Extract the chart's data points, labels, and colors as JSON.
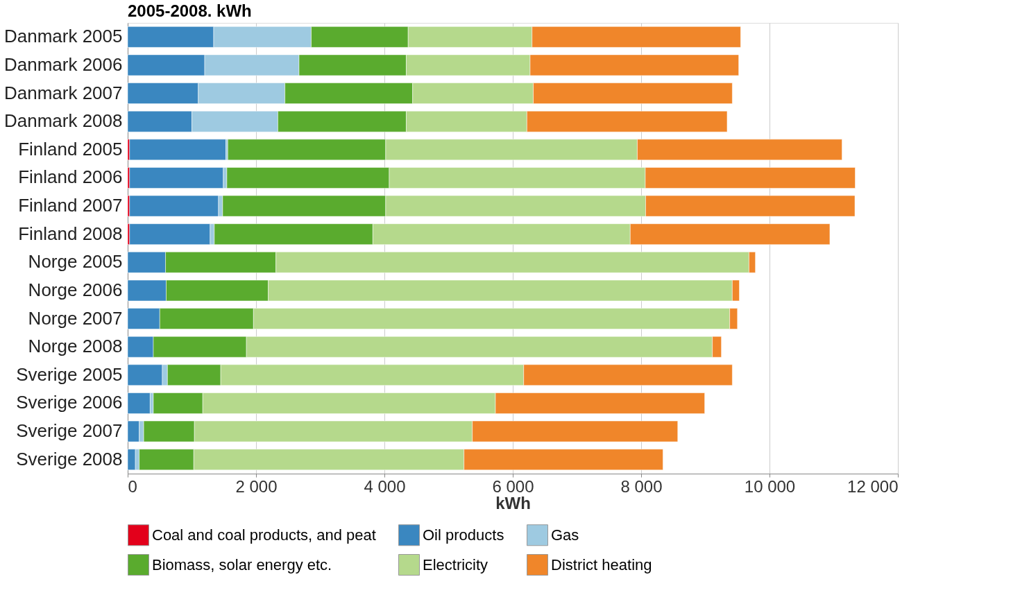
{
  "chart_data": {
    "type": "bar",
    "orientation": "horizontal",
    "stacked": true,
    "title": "2005-2008. kWh",
    "xlabel": "kWh",
    "categories": [
      "Danmark 2005",
      "Danmark 2006",
      "Danmark 2007",
      "Danmark 2008",
      "Finland 2005",
      "Finland 2006",
      "Finland 2007",
      "Finland 2008",
      "Norge 2005",
      "Norge 2006",
      "Norge 2007",
      "Norge 2008",
      "Sverige 2005",
      "Sverige 2006",
      "Sverige 2007",
      "Sverige 2008"
    ],
    "series": [
      {
        "name": "Coal and coal products, and peat",
        "color": "#e3001b",
        "values": [
          null,
          null,
          null,
          null,
          30,
          30,
          30,
          30,
          null,
          null,
          null,
          null,
          null,
          null,
          null,
          null
        ]
      },
      {
        "name": "Oil products",
        "color": "#3a87c0",
        "values": [
          1340,
          1200,
          1100,
          1000,
          1500,
          1460,
          1385,
          1255,
          590,
          600,
          500,
          400,
          540,
          350,
          180,
          120
        ]
      },
      {
        "name": "Gas",
        "color": "#9ecae1",
        "values": [
          1520,
          1470,
          1350,
          1340,
          30,
          55,
          65,
          65,
          null,
          null,
          null,
          null,
          80,
          50,
          70,
          60
        ]
      },
      {
        "name": "Biomass, solar energy etc.",
        "color": "#5aab2e",
        "values": [
          1510,
          1670,
          1990,
          2000,
          2460,
          2530,
          2540,
          2470,
          1720,
          1590,
          1460,
          1450,
          830,
          770,
          790,
          850
        ]
      },
      {
        "name": "Electricity",
        "color": "#b5d98c",
        "values": [
          1930,
          1930,
          1880,
          1880,
          3920,
          3990,
          4050,
          4010,
          7370,
          7230,
          7420,
          7260,
          4720,
          4560,
          4330,
          4210
        ]
      },
      {
        "name": "District heating",
        "color": "#f0862a",
        "values": [
          3250,
          3250,
          3100,
          3120,
          3190,
          3270,
          3260,
          3110,
          100,
          110,
          120,
          140,
          3250,
          3260,
          3200,
          3100
        ]
      }
    ],
    "xlim": [
      0,
      12000
    ],
    "xticks": [
      0,
      {
        "value": 2000,
        "label": "2 000"
      },
      {
        "value": 4000,
        "label": "4 000"
      },
      {
        "value": 6000,
        "label": "6 000"
      },
      {
        "value": 8000,
        "label": "8 000"
      },
      {
        "value": 10000,
        "label": "10 000"
      },
      {
        "value": 12000,
        "label": "12 000"
      }
    ],
    "grid": "x",
    "legend": "bottom"
  }
}
